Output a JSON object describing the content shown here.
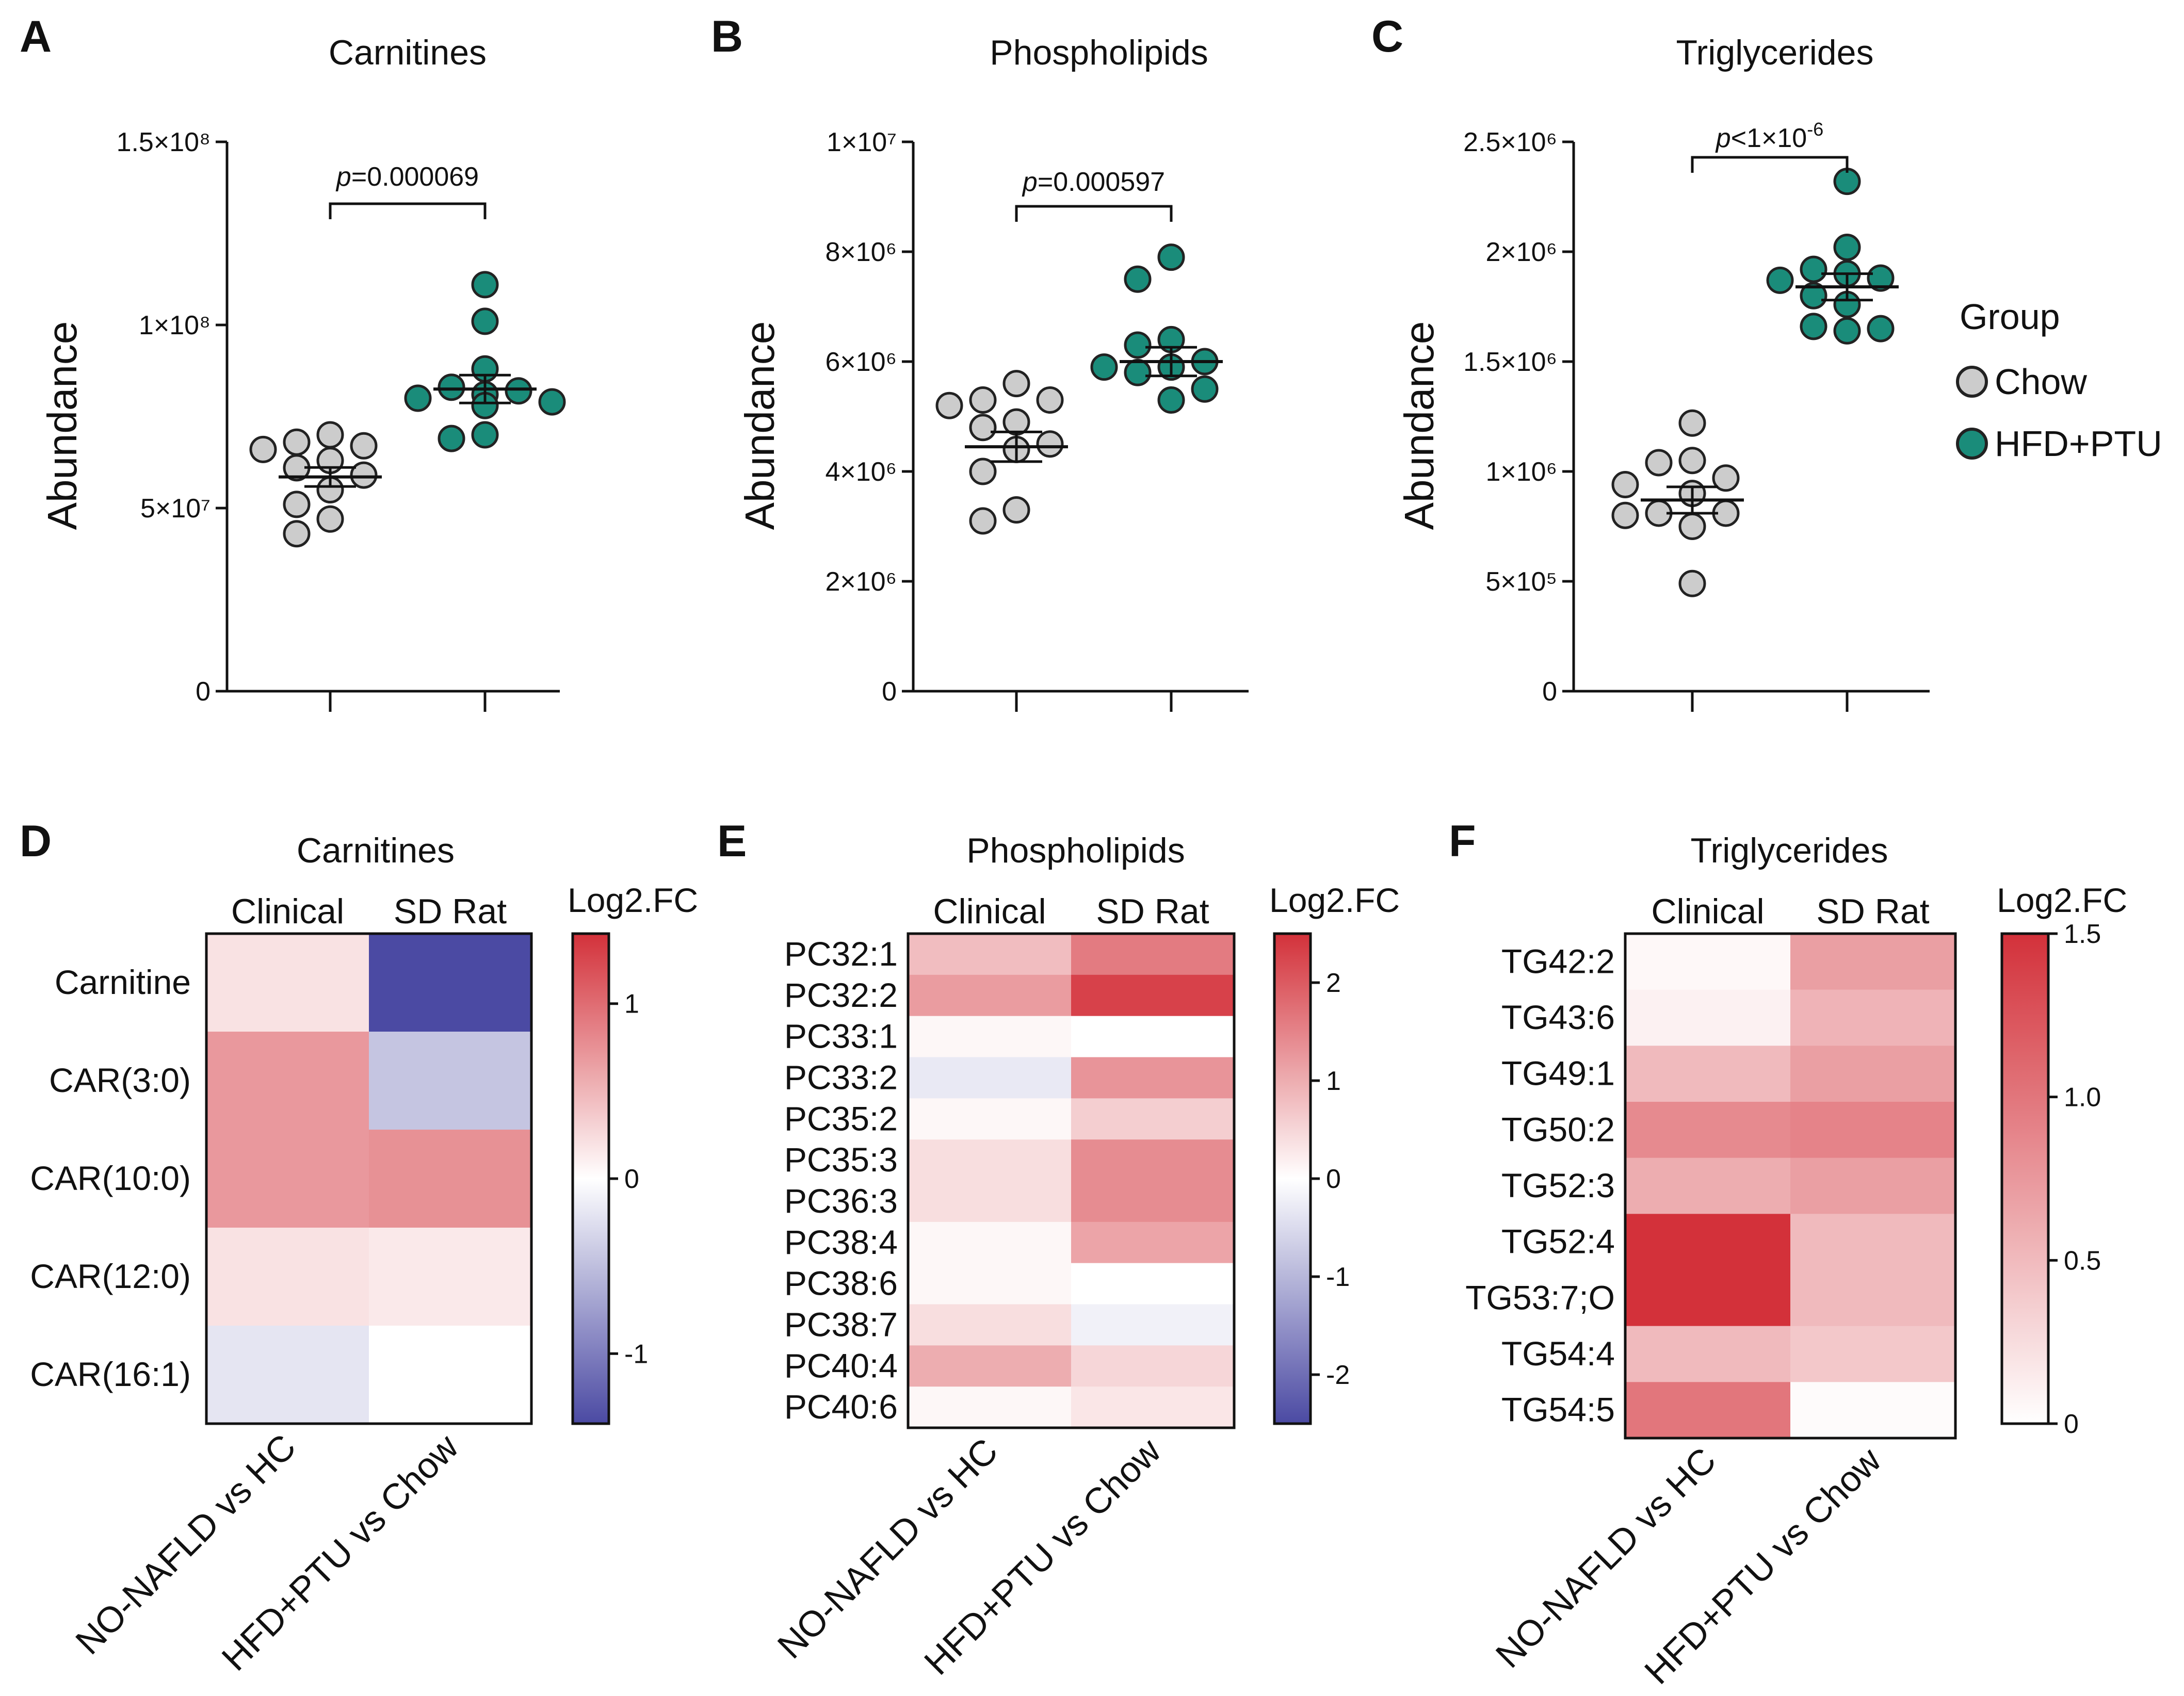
{
  "chart_data": [
    {
      "panel": "A",
      "type": "scatter",
      "title": "Carnitines",
      "ylabel": "Abundance",
      "ylim": [
        0,
        150000000
      ],
      "ytick_values": [
        0,
        50000000,
        100000000,
        150000000
      ],
      "yticks": [
        "0",
        "5×10⁷",
        "1×10⁸",
        "1.5×10⁸"
      ],
      "groups": [
        "Chow",
        "HFD+PTU"
      ],
      "series": [
        {
          "name": "Chow",
          "values": [
            70000000,
            68000000,
            67000000,
            66000000,
            63000000,
            61000000,
            59000000,
            55000000,
            51000000,
            47000000,
            43000000
          ]
        },
        {
          "name": "HFD+PTU",
          "values": [
            111000000,
            101000000,
            88000000,
            83000000,
            82000000,
            81000000,
            80000000,
            79000000,
            78000000,
            70000000,
            69000000
          ]
        }
      ],
      "means": [
        58500000,
        82500000
      ],
      "sems": [
        2600000,
        3800000
      ],
      "pvalue": {
        "prefix": "p",
        "text": "=0.000069"
      }
    },
    {
      "panel": "B",
      "type": "scatter",
      "title": "Phospholipids",
      "ylabel": "Abundance",
      "ylim": [
        0,
        10000000
      ],
      "ytick_values": [
        0,
        2000000,
        4000000,
        6000000,
        8000000,
        10000000
      ],
      "yticks": [
        "0",
        "2×10⁶",
        "4×10⁶",
        "6×10⁶",
        "8×10⁶",
        "1×10⁷"
      ],
      "groups": [
        "Chow",
        "HFD+PTU"
      ],
      "series": [
        {
          "name": "Chow",
          "values": [
            5600000,
            5300000,
            5300000,
            5200000,
            4900000,
            4800000,
            4500000,
            4400000,
            4000000,
            3300000,
            3100000
          ]
        },
        {
          "name": "HFD+PTU",
          "values": [
            7900000,
            7500000,
            6400000,
            6300000,
            6000000,
            5900000,
            5900000,
            5800000,
            5500000,
            5300000
          ]
        }
      ],
      "means": [
        4450000,
        6000000
      ],
      "sems": [
        270000,
        260000
      ],
      "pvalue": {
        "prefix": "p",
        "text": "=0.000597"
      }
    },
    {
      "panel": "C",
      "type": "scatter",
      "title": "Triglycerides",
      "ylabel": "Abundance",
      "ylim": [
        0,
        2500000
      ],
      "ytick_values": [
        0,
        500000,
        1000000,
        1500000,
        2000000,
        2500000
      ],
      "yticks": [
        "0",
        "5×10⁵",
        "1×10⁶",
        "1.5×10⁶",
        "2×10⁶",
        "2.5×10⁶"
      ],
      "groups": [
        "Chow",
        "HFD+PTU"
      ],
      "series": [
        {
          "name": "Chow",
          "values": [
            1220000,
            1050000,
            1040000,
            970000,
            940000,
            900000,
            810000,
            810000,
            800000,
            750000,
            490000
          ]
        },
        {
          "name": "HFD+PTU",
          "values": [
            2320000,
            2020000,
            1920000,
            1900000,
            1880000,
            1870000,
            1800000,
            1760000,
            1660000,
            1650000,
            1640000
          ]
        }
      ],
      "means": [
        870000,
        1840000
      ],
      "sems": [
        60000,
        60000
      ],
      "pvalue": {
        "prefix": "p",
        "text": "<1×10",
        "exp": "-6"
      }
    },
    {
      "panel": "D",
      "type": "heatmap",
      "title": "Carnitines",
      "columns": [
        "Clinical",
        "SD Rat"
      ],
      "xlabels": [
        "NO-NAFLD vs HC",
        "HFD+PTU vs Chow"
      ],
      "rows": [
        "Carnitine",
        "CAR(3:0)",
        "CAR(10:0)",
        "CAR(12:0)",
        "CAR(16:1)"
      ],
      "values": [
        [
          0.2,
          -1.4
        ],
        [
          0.7,
          -0.45
        ],
        [
          0.7,
          0.75
        ],
        [
          0.2,
          0.15
        ],
        [
          -0.2,
          0.0
        ]
      ],
      "colorbar": {
        "title": "Log2.FC",
        "vmin": -1.4,
        "vmax": 1.4,
        "tick_values": [
          -1,
          0,
          1
        ],
        "ticks": [
          "-1",
          "0",
          "1"
        ]
      }
    },
    {
      "panel": "E",
      "type": "heatmap",
      "title": "Phospholipids",
      "columns": [
        "Clinical",
        "SD Rat"
      ],
      "xlabels": [
        "NO-NAFLD vs HC",
        "HFD+PTU vs Chow"
      ],
      "rows": [
        "PC32:1",
        "PC32:2",
        "PC33:1",
        "PC33:2",
        "PC35:2",
        "PC35:3",
        "PC36:3",
        "PC38:4",
        "PC38:6",
        "PC38:7",
        "PC40:4",
        "PC40:6"
      ],
      "values": [
        [
          0.8,
          1.6
        ],
        [
          1.2,
          2.3
        ],
        [
          0.1,
          0.0
        ],
        [
          -0.3,
          1.3
        ],
        [
          0.1,
          0.6
        ],
        [
          0.4,
          1.4
        ],
        [
          0.4,
          1.4
        ],
        [
          0.1,
          1.1
        ],
        [
          0.1,
          0.0
        ],
        [
          0.4,
          -0.2
        ],
        [
          1.0,
          0.5
        ],
        [
          0.1,
          0.3
        ]
      ],
      "colorbar": {
        "title": "Log2.FC",
        "vmin": -2.5,
        "vmax": 2.5,
        "tick_values": [
          -2,
          -1,
          0,
          1,
          2
        ],
        "ticks": [
          "-2",
          "-1",
          "0",
          "1",
          "2"
        ]
      }
    },
    {
      "panel": "F",
      "type": "heatmap",
      "title": "Triglycerides",
      "columns": [
        "Clinical",
        "SD Rat"
      ],
      "xlabels": [
        "NO-NAFLD vs HC",
        "HFD+PTU vs Chow"
      ],
      "rows": [
        "TG42:2",
        "TG43:6",
        "TG49:1",
        "TG50:2",
        "TG52:3",
        "TG52:4",
        "TG53:7;O",
        "TG54:4",
        "TG54:5"
      ],
      "values": [
        [
          0.05,
          0.7
        ],
        [
          0.1,
          0.55
        ],
        [
          0.5,
          0.7
        ],
        [
          0.85,
          0.9
        ],
        [
          0.6,
          0.7
        ],
        [
          1.5,
          0.5
        ],
        [
          1.5,
          0.5
        ],
        [
          0.5,
          0.4
        ],
        [
          1.0,
          0.03
        ]
      ],
      "colorbar": {
        "title": "Log2.FC",
        "vmin": 0,
        "vmax": 1.5,
        "tick_values": [
          0,
          0.5,
          1.0,
          1.5
        ],
        "ticks": [
          "0",
          "0.5",
          "1.0",
          "1.5"
        ]
      }
    }
  ],
  "legend": {
    "title": "Group",
    "items": [
      {
        "label": "Chow",
        "color": "#cccccc"
      },
      {
        "label": "HFD+PTU",
        "color": "#1a8c7a"
      }
    ]
  },
  "colors": {
    "chow": "#cccccc",
    "hfd": "#1a8c7a",
    "neg": "#4b4aa3",
    "pos": "#d3313a"
  }
}
